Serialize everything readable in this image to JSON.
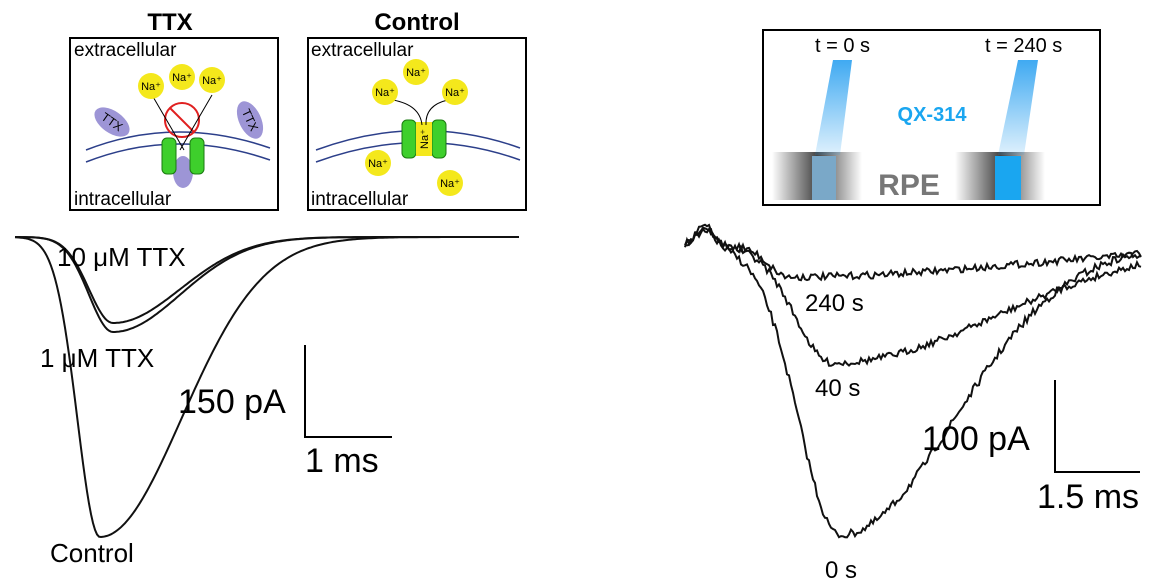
{
  "left_panel": {
    "insets": [
      {
        "title": "TTX",
        "top_label": "extracellular",
        "bottom_label": "intracellular",
        "ions": [
          "Na⁺",
          "Na⁺",
          "Na⁺"
        ],
        "blockers": [
          "TTX",
          "TTX"
        ]
      },
      {
        "title": "Control",
        "top_label": "extracellular",
        "bottom_label": "intracellular",
        "ions": [
          "Na⁺",
          "Na⁺",
          "Na⁺",
          "Na⁺",
          "Na⁺",
          "Na⁺"
        ]
      }
    ],
    "trace_labels": [
      "10 μM TTX",
      "1 μM TTX",
      "Control"
    ],
    "scale_bar": {
      "y_label": "150 pA",
      "x_label": "1 ms"
    }
  },
  "right_panel": {
    "inset": {
      "left_time": "t = 0 s",
      "right_time": "t = 240 s",
      "drug": "QX-314",
      "tissue": "RPE"
    },
    "trace_labels": [
      "240 s",
      "40 s",
      "0 s"
    ],
    "scale_bar": {
      "y_label": "100 pA",
      "x_label": "1.5 ms"
    }
  }
}
